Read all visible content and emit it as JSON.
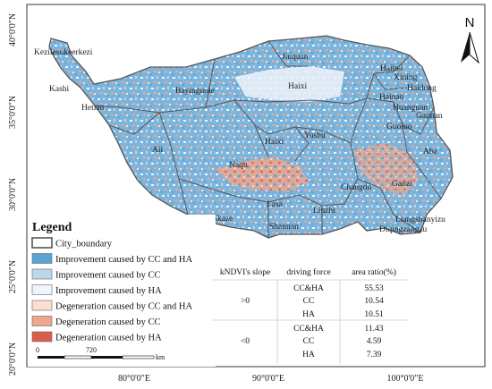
{
  "axes": {
    "lat_labels": [
      "40°0'0\"N",
      "35°0'0\"N",
      "30°0'0\"N",
      "25°0'0\"N",
      "20°0'0\"N"
    ],
    "lon_labels": [
      "80°0'0\"E",
      "90°0'0\"E",
      "100°0'0\"E"
    ]
  },
  "north_arrow": {
    "label": "N"
  },
  "cities": [
    "Kezilesukeerkezi",
    "Kashi",
    "Hetian",
    "Bayinguole",
    "Jiuquan",
    "Haixi",
    "Haibei",
    "Xining",
    "Haidong",
    "Hainan",
    "Huangnan",
    "Gannan",
    "Guoluo",
    "Haixi",
    "Yushu",
    "Ali",
    "Naqu",
    "Aba",
    "Changdu",
    "Ganzi",
    "Lasa",
    "Linzhi",
    "Rikaze",
    "Shannan",
    "Liangshanyizu",
    "Diqingzangzu"
  ],
  "legend": {
    "title": "Legend",
    "items": [
      {
        "label": "City_boundary",
        "color": "#ffffff",
        "stroke": "#555555"
      },
      {
        "label": "Improvement caused by CC and HA",
        "color": "#5aa3d2"
      },
      {
        "label": "Improvement caused by CC",
        "color": "#bcd7ec"
      },
      {
        "label": "Improvement caused by HA",
        "color": "#eef5fb"
      },
      {
        "label": "Degeneration caused by CC and HA",
        "color": "#fbe0d2"
      },
      {
        "label": "Degeneration caused by CC",
        "color": "#eea68c"
      },
      {
        "label": "Degeneration caused by HA",
        "color": "#dc5d4c"
      }
    ]
  },
  "table": {
    "headers": [
      "kNDVI's slope",
      "driving force",
      "area ratio(%)"
    ],
    "groups": [
      {
        "slope": ">0",
        "rows": [
          [
            "CC&HA",
            "55.53"
          ],
          [
            "CC",
            "10.54"
          ],
          [
            "HA",
            "10.51"
          ]
        ]
      },
      {
        "slope": "<0",
        "rows": [
          [
            "CC&HA",
            "11.43"
          ],
          [
            "CC",
            "4.59"
          ],
          [
            "HA",
            "7.39"
          ]
        ]
      }
    ]
  },
  "scale_bar": {
    "labels": [
      "0",
      "720",
      "km"
    ]
  }
}
